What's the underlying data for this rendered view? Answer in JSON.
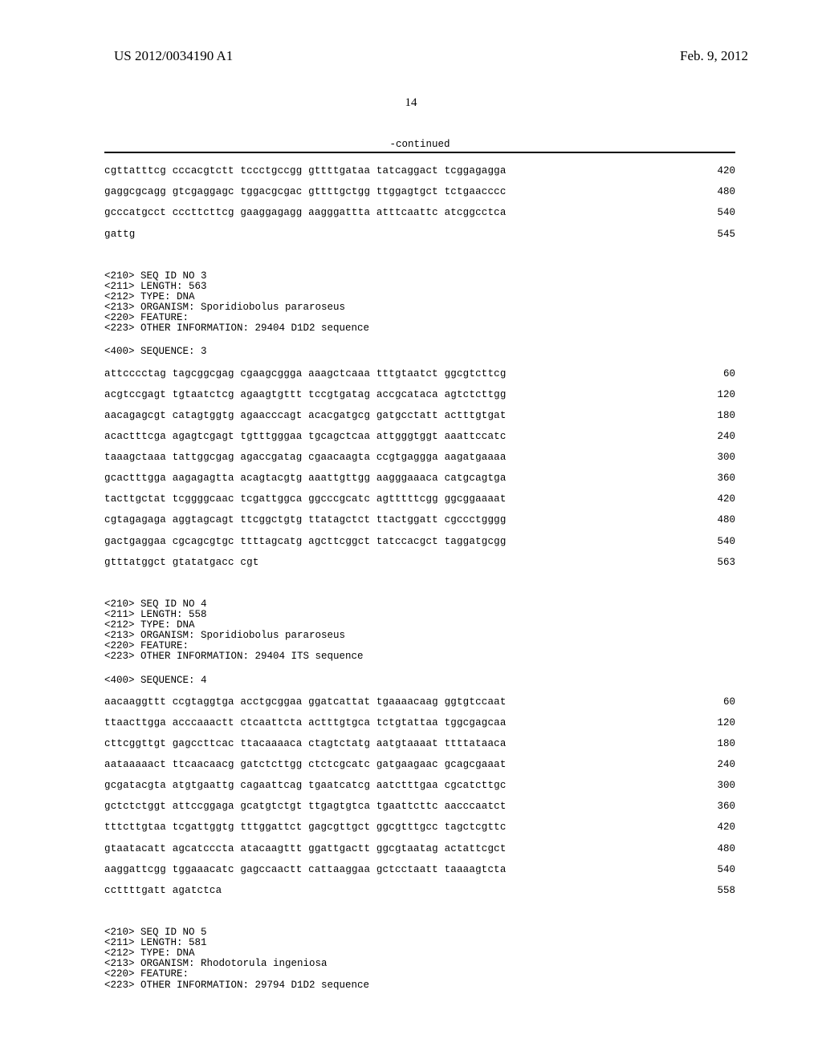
{
  "header": {
    "pub_number": "US 2012/0034190 A1",
    "pub_date": "Feb. 9, 2012",
    "page_number": "14"
  },
  "continued_label": "-continued",
  "blocks": [
    {
      "type": "seq",
      "lines": [
        {
          "seq": "cgttatttcg cccacgtctt tccctgccgg gttttgataa tatcaggact tcggagagga",
          "pos": "420"
        },
        {
          "seq": "gaggcgcagg gtcgaggagc tggacgcgac gttttgctgg ttggagtgct tctgaacccc",
          "pos": "480"
        },
        {
          "seq": "gcccatgcct cccttcttcg gaaggagagg aagggattta atttcaattc atcggcctca",
          "pos": "540"
        },
        {
          "seq": "gattg",
          "pos": "545"
        }
      ]
    },
    {
      "type": "meta",
      "lines": [
        "<210> SEQ ID NO 3",
        "<211> LENGTH: 563",
        "<212> TYPE: DNA",
        "<213> ORGANISM: Sporidiobolus pararoseus",
        "<220> FEATURE:",
        "<223> OTHER INFORMATION: 29404 D1D2 sequence"
      ]
    },
    {
      "type": "meta",
      "lines": [
        "<400> SEQUENCE: 3"
      ]
    },
    {
      "type": "seq",
      "lines": [
        {
          "seq": "attcccctag tagcggcgag cgaagcggga aaagctcaaa tttgtaatct ggcgtcttcg",
          "pos": "60"
        },
        {
          "seq": "acgtccgagt tgtaatctcg agaagtgttt tccgtgatag accgcataca agtctcttgg",
          "pos": "120"
        },
        {
          "seq": "aacagagcgt catagtggtg agaacccagt acacgatgcg gatgcctatt actttgtgat",
          "pos": "180"
        },
        {
          "seq": "acactttcga agagtcgagt tgtttgggaa tgcagctcaa attgggtggt aaattccatc",
          "pos": "240"
        },
        {
          "seq": "taaagctaaa tattggcgag agaccgatag cgaacaagta ccgtgaggga aagatgaaaa",
          "pos": "300"
        },
        {
          "seq": "gcactttgga aagagagtta acagtacgtg aaattgttgg aagggaaaca catgcagtga",
          "pos": "360"
        },
        {
          "seq": "tacttgctat tcggggcaac tcgattggca ggcccgcatc agtttttcgg ggcggaaaat",
          "pos": "420"
        },
        {
          "seq": "cgtagagaga aggtagcagt ttcggctgtg ttatagctct ttactggatt cgccctgggg",
          "pos": "480"
        },
        {
          "seq": "gactgaggaa cgcagcgtgc ttttagcatg agcttcggct tatccacgct taggatgcgg",
          "pos": "540"
        },
        {
          "seq": "gtttatggct gtatatgacc cgt",
          "pos": "563"
        }
      ]
    },
    {
      "type": "meta",
      "lines": [
        "<210> SEQ ID NO 4",
        "<211> LENGTH: 558",
        "<212> TYPE: DNA",
        "<213> ORGANISM: Sporidiobolus pararoseus",
        "<220> FEATURE:",
        "<223> OTHER INFORMATION: 29404 ITS sequence"
      ]
    },
    {
      "type": "meta",
      "lines": [
        "<400> SEQUENCE: 4"
      ]
    },
    {
      "type": "seq",
      "lines": [
        {
          "seq": "aacaaggttt ccgtaggtga acctgcggaa ggatcattat tgaaaacaag ggtgtccaat",
          "pos": "60"
        },
        {
          "seq": "ttaacttgga acccaaactt ctcaattcta actttgtgca tctgtattaa tggcgagcaa",
          "pos": "120"
        },
        {
          "seq": "cttcggttgt gagccttcac ttacaaaaca ctagtctatg aatgtaaaat ttttataaca",
          "pos": "180"
        },
        {
          "seq": "aataaaaact ttcaacaacg gatctcttgg ctctcgcatc gatgaagaac gcagcgaaat",
          "pos": "240"
        },
        {
          "seq": "gcgatacgta atgtgaattg cagaattcag tgaatcatcg aatctttgaa cgcatcttgc",
          "pos": "300"
        },
        {
          "seq": "gctctctggt attccggaga gcatgtctgt ttgagtgtca tgaattcttc aacccaatct",
          "pos": "360"
        },
        {
          "seq": "tttcttgtaa tcgattggtg tttggattct gagcgttgct ggcgtttgcc tagctcgttc",
          "pos": "420"
        },
        {
          "seq": "gtaatacatt agcatcccta atacaagttt ggattgactt ggcgtaatag actattcgct",
          "pos": "480"
        },
        {
          "seq": "aaggattcgg tggaaacatc gagccaactt cattaaggaa gctcctaatt taaaagtcta",
          "pos": "540"
        },
        {
          "seq": "ccttttgatt agatctca",
          "pos": "558"
        }
      ]
    },
    {
      "type": "meta",
      "lines": [
        "<210> SEQ ID NO 5",
        "<211> LENGTH: 581",
        "<212> TYPE: DNA",
        "<213> ORGANISM: Rhodotorula ingeniosa",
        "<220> FEATURE:",
        "<223> OTHER INFORMATION: 29794 D1D2 sequence"
      ]
    }
  ]
}
